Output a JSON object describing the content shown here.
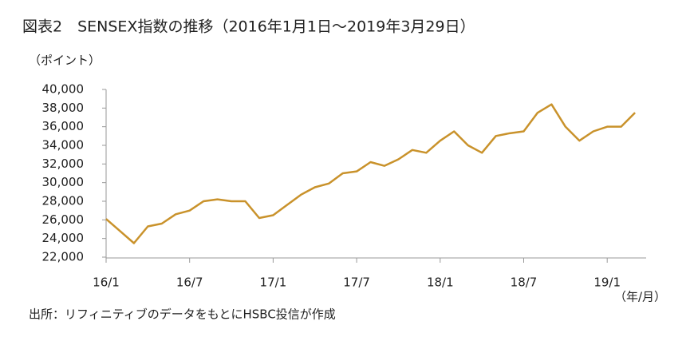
{
  "chart_data": {
    "type": "line",
    "title": "図表2　SENSEX指数の推移（2016年1月1日～2019年3月29日）",
    "y_label": "（ポイント）",
    "x_label": "（年/月）",
    "source": "出所：リフィニティブのデータをもとにHSBC投信が作成",
    "x": [
      "2016-01",
      "2016-02",
      "2016-03",
      "2016-04",
      "2016-05",
      "2016-06",
      "2016-07",
      "2016-08",
      "2016-09",
      "2016-10",
      "2016-11",
      "2016-12",
      "2017-01",
      "2017-02",
      "2017-03",
      "2017-04",
      "2017-05",
      "2017-06",
      "2017-07",
      "2017-08",
      "2017-09",
      "2017-10",
      "2017-11",
      "2017-12",
      "2018-01",
      "2018-02",
      "2018-03",
      "2018-04",
      "2018-05",
      "2018-06",
      "2018-07",
      "2018-08",
      "2018-09",
      "2018-10",
      "2018-11",
      "2018-12",
      "2019-01",
      "2019-02",
      "2019-03"
    ],
    "series": [
      {
        "name": "SENSEX",
        "color": "#c9922b",
        "values": [
          26100,
          24800,
          23500,
          25300,
          25600,
          26600,
          27000,
          28000,
          28200,
          28000,
          28000,
          26200,
          26500,
          27600,
          28700,
          29500,
          29900,
          31000,
          31200,
          32200,
          31800,
          32500,
          33500,
          33200,
          34500,
          35500,
          34000,
          33200,
          35000,
          35300,
          35500,
          37500,
          38400,
          36000,
          34500,
          35500,
          36000,
          36000,
          37500
        ]
      }
    ],
    "xticks": [
      {
        "value": "2016-01",
        "label": "16/1"
      },
      {
        "value": "2016-07",
        "label": "16/7"
      },
      {
        "value": "2017-01",
        "label": "17/1"
      },
      {
        "value": "2017-07",
        "label": "17/7"
      },
      {
        "value": "2018-01",
        "label": "18/1"
      },
      {
        "value": "2018-07",
        "label": "18/7"
      },
      {
        "value": "2019-01",
        "label": "19/1"
      }
    ],
    "ylim": [
      22000,
      40000
    ],
    "yticks": [
      {
        "value": 22000,
        "label": "22,000"
      },
      {
        "value": 24000,
        "label": "24,000"
      },
      {
        "value": 26000,
        "label": "26,000"
      },
      {
        "value": 28000,
        "label": "28,000"
      },
      {
        "value": 30000,
        "label": "30,000"
      },
      {
        "value": 32000,
        "label": "32,000"
      },
      {
        "value": 34000,
        "label": "34,000"
      },
      {
        "value": 36000,
        "label": "36,000"
      },
      {
        "value": 38000,
        "label": "38,000"
      },
      {
        "value": 40000,
        "label": "40,000"
      }
    ],
    "grid": false
  }
}
